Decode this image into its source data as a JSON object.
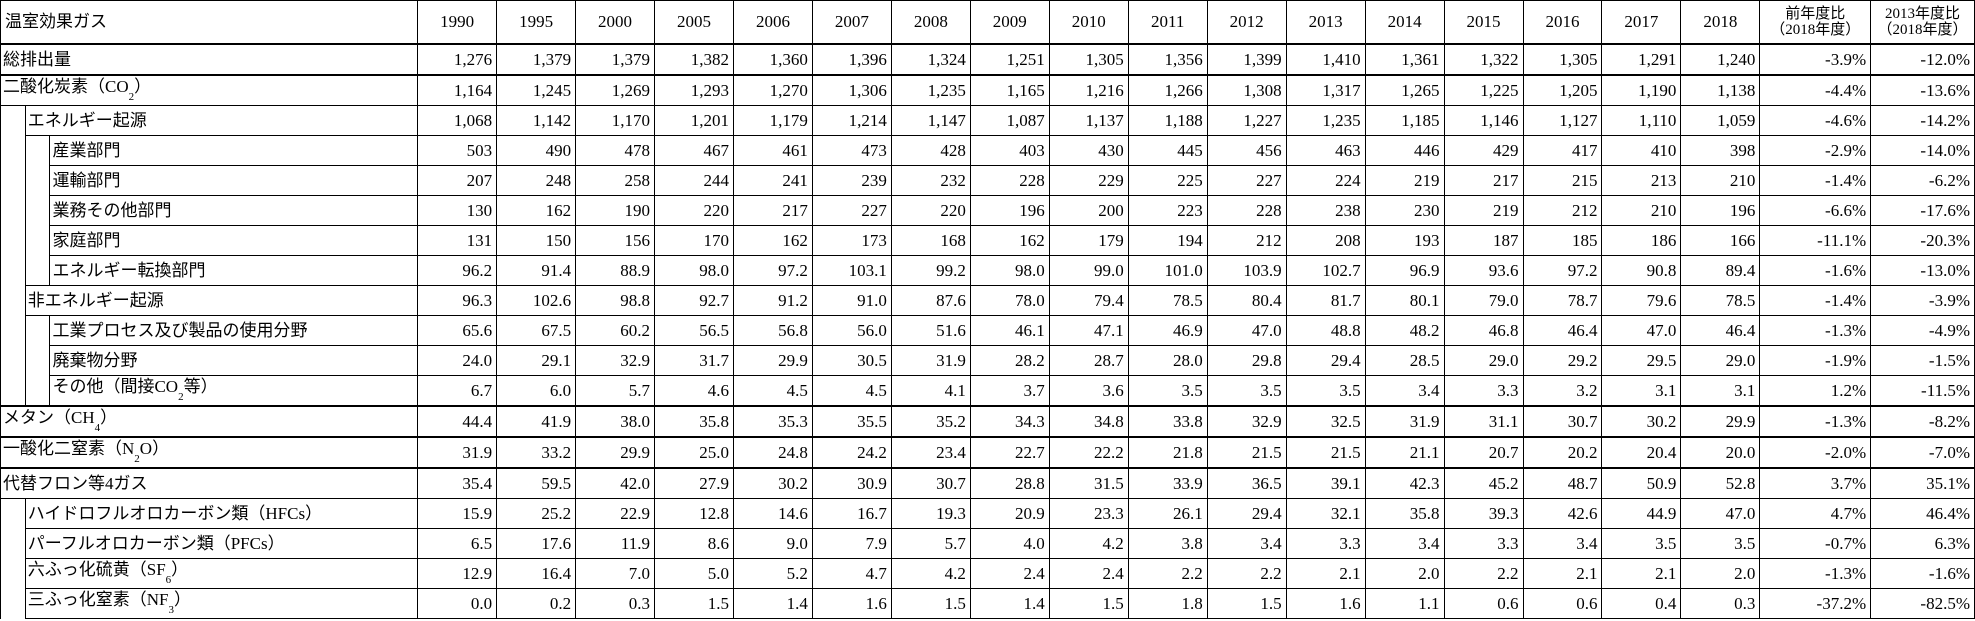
{
  "header": {
    "label": "温室効果ガス",
    "years": [
      "1990",
      "1995",
      "2000",
      "2005",
      "2006",
      "2007",
      "2008",
      "2009",
      "2010",
      "2011",
      "2012",
      "2013",
      "2014",
      "2015",
      "2016",
      "2017",
      "2018"
    ],
    "ratio_prev_line1": "前年度比",
    "ratio_prev_line2": "（2018年度）",
    "ratio_2013_line1": "2013年度比",
    "ratio_2013_line2": "（2018年度）"
  },
  "rows": [
    {
      "label": "総排出量",
      "values": [
        "1,276",
        "1,379",
        "1,379",
        "1,382",
        "1,360",
        "1,396",
        "1,324",
        "1,251",
        "1,305",
        "1,356",
        "1,399",
        "1,410",
        "1,361",
        "1,322",
        "1,305",
        "1,291",
        "1,240"
      ],
      "prev": "-3.9%",
      "vs2013": "-12.0%"
    },
    {
      "label": "二酸化炭素",
      "paren_open": "（",
      "chem": "CO",
      "chem_sub": "2",
      "paren_close": "）",
      "values": [
        "1,164",
        "1,245",
        "1,269",
        "1,293",
        "1,270",
        "1,306",
        "1,235",
        "1,165",
        "1,216",
        "1,266",
        "1,308",
        "1,317",
        "1,265",
        "1,225",
        "1,205",
        "1,190",
        "1,138"
      ],
      "prev": "-4.4%",
      "vs2013": "-13.6%"
    },
    {
      "label": "エネルギー起源",
      "values": [
        "1,068",
        "1,142",
        "1,170",
        "1,201",
        "1,179",
        "1,214",
        "1,147",
        "1,087",
        "1,137",
        "1,188",
        "1,227",
        "1,235",
        "1,185",
        "1,146",
        "1,127",
        "1,110",
        "1,059"
      ],
      "prev": "-4.6%",
      "vs2013": "-14.2%"
    },
    {
      "label": "産業部門",
      "values": [
        "503",
        "490",
        "478",
        "467",
        "461",
        "473",
        "428",
        "403",
        "430",
        "445",
        "456",
        "463",
        "446",
        "429",
        "417",
        "410",
        "398"
      ],
      "prev": "-2.9%",
      "vs2013": "-14.0%"
    },
    {
      "label": "運輸部門",
      "values": [
        "207",
        "248",
        "258",
        "244",
        "241",
        "239",
        "232",
        "228",
        "229",
        "225",
        "227",
        "224",
        "219",
        "217",
        "215",
        "213",
        "210"
      ],
      "prev": "-1.4%",
      "vs2013": "-6.2%"
    },
    {
      "label": "業務その他部門",
      "values": [
        "130",
        "162",
        "190",
        "220",
        "217",
        "227",
        "220",
        "196",
        "200",
        "223",
        "228",
        "238",
        "230",
        "219",
        "212",
        "210",
        "196"
      ],
      "prev": "-6.6%",
      "vs2013": "-17.6%"
    },
    {
      "label": "家庭部門",
      "values": [
        "131",
        "150",
        "156",
        "170",
        "162",
        "173",
        "168",
        "162",
        "179",
        "194",
        "212",
        "208",
        "193",
        "187",
        "185",
        "186",
        "166"
      ],
      "prev": "-11.1%",
      "vs2013": "-20.3%"
    },
    {
      "label": "エネルギー転換部門",
      "values": [
        "96.2",
        "91.4",
        "88.9",
        "98.0",
        "97.2",
        "103.1",
        "99.2",
        "98.0",
        "99.0",
        "101.0",
        "103.9",
        "102.7",
        "96.9",
        "93.6",
        "97.2",
        "90.8",
        "89.4"
      ],
      "prev": "-1.6%",
      "vs2013": "-13.0%"
    },
    {
      "label": "非エネルギー起源",
      "values": [
        "96.3",
        "102.6",
        "98.8",
        "92.7",
        "91.2",
        "91.0",
        "87.6",
        "78.0",
        "79.4",
        "78.5",
        "80.4",
        "81.7",
        "80.1",
        "79.0",
        "78.7",
        "79.6",
        "78.5"
      ],
      "prev": "-1.4%",
      "vs2013": "-3.9%"
    },
    {
      "label": "工業プロセス及び製品の使用分野",
      "values": [
        "65.6",
        "67.5",
        "60.2",
        "56.5",
        "56.8",
        "56.0",
        "51.6",
        "46.1",
        "47.1",
        "46.9",
        "47.0",
        "48.8",
        "48.2",
        "46.8",
        "46.4",
        "47.0",
        "46.4"
      ],
      "prev": "-1.3%",
      "vs2013": "-4.9%"
    },
    {
      "label": "廃棄物分野",
      "values": [
        "24.0",
        "29.1",
        "32.9",
        "31.7",
        "29.9",
        "30.5",
        "31.9",
        "28.2",
        "28.7",
        "28.0",
        "29.8",
        "29.4",
        "28.5",
        "29.0",
        "29.2",
        "29.5",
        "29.0"
      ],
      "prev": "-1.9%",
      "vs2013": "-1.5%"
    },
    {
      "label": "その他",
      "paren_open": "（間接",
      "chem": "CO",
      "chem_sub": "2",
      "paren_close": "等）",
      "values": [
        "6.7",
        "6.0",
        "5.7",
        "4.6",
        "4.5",
        "4.5",
        "4.1",
        "3.7",
        "3.6",
        "3.5",
        "3.5",
        "3.5",
        "3.4",
        "3.3",
        "3.2",
        "3.1",
        "3.1"
      ],
      "prev": "1.2%",
      "vs2013": "-11.5%"
    },
    {
      "label": "メタン",
      "paren_open": "（",
      "chem": "CH",
      "chem_sub": "4",
      "paren_close": "）",
      "values": [
        "44.4",
        "41.9",
        "38.0",
        "35.8",
        "35.3",
        "35.5",
        "35.2",
        "34.3",
        "34.8",
        "33.8",
        "32.9",
        "32.5",
        "31.9",
        "31.1",
        "30.7",
        "30.2",
        "29.9"
      ],
      "prev": "-1.3%",
      "vs2013": "-8.2%"
    },
    {
      "label": "一酸化二窒素",
      "paren_open": "（",
      "chem": "N",
      "chem_sub": "2",
      "chem_after": "O",
      "paren_close": "）",
      "values": [
        "31.9",
        "33.2",
        "29.9",
        "25.0",
        "24.8",
        "24.2",
        "23.4",
        "22.7",
        "22.2",
        "21.8",
        "21.5",
        "21.5",
        "21.1",
        "20.7",
        "20.2",
        "20.4",
        "20.0"
      ],
      "prev": "-2.0%",
      "vs2013": "-7.0%"
    },
    {
      "label": "代替フロン等4ガス",
      "values": [
        "35.4",
        "59.5",
        "42.0",
        "27.9",
        "30.2",
        "30.9",
        "30.7",
        "28.8",
        "31.5",
        "33.9",
        "36.5",
        "39.1",
        "42.3",
        "45.2",
        "48.7",
        "50.9",
        "52.8"
      ],
      "prev": "3.7%",
      "vs2013": "35.1%"
    },
    {
      "label": "ハイドロフルオロカーボン類（HFCs）",
      "values": [
        "15.9",
        "25.2",
        "22.9",
        "12.8",
        "14.6",
        "16.7",
        "19.3",
        "20.9",
        "23.3",
        "26.1",
        "29.4",
        "32.1",
        "35.8",
        "39.3",
        "42.6",
        "44.9",
        "47.0"
      ],
      "prev": "4.7%",
      "vs2013": "46.4%"
    },
    {
      "label": "パーフルオロカーボン類（PFCs）",
      "values": [
        "6.5",
        "17.6",
        "11.9",
        "8.6",
        "9.0",
        "7.9",
        "5.7",
        "4.0",
        "4.2",
        "3.8",
        "3.4",
        "3.3",
        "3.4",
        "3.3",
        "3.4",
        "3.5",
        "3.5"
      ],
      "prev": "-0.7%",
      "vs2013": "6.3%"
    },
    {
      "label": "六ふっ化硫黄",
      "paren_open": "（",
      "chem": "SF",
      "chem_sub": "6",
      "paren_close": "）",
      "values": [
        "12.9",
        "16.4",
        "7.0",
        "5.0",
        "5.2",
        "4.7",
        "4.2",
        "2.4",
        "2.4",
        "2.2",
        "2.2",
        "2.1",
        "2.0",
        "2.2",
        "2.1",
        "2.1",
        "2.0"
      ],
      "prev": "-1.3%",
      "vs2013": "-1.6%"
    },
    {
      "label": "三ふっ化窒素",
      "paren_open": "（",
      "chem": "NF",
      "chem_sub": "3",
      "paren_close": "）",
      "values": [
        "0.0",
        "0.2",
        "0.3",
        "1.5",
        "1.4",
        "1.6",
        "1.5",
        "1.4",
        "1.5",
        "1.8",
        "1.5",
        "1.6",
        "1.1",
        "0.6",
        "0.6",
        "0.4",
        "0.3"
      ],
      "prev": "-37.2%",
      "vs2013": "-82.5%"
    }
  ]
}
